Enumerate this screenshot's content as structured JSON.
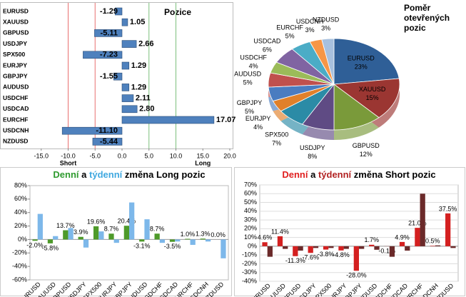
{
  "chart_data": [
    {
      "type": "hbar",
      "title": "Pozice",
      "categories": [
        "EURUSD",
        "XAUUSD",
        "GBPUSD",
        "USDJPY",
        "SPX500",
        "EURJPY",
        "GBPJPY",
        "AUDUSD",
        "USDCHF",
        "USDCAD",
        "EURCHF",
        "USDCNH",
        "NZDUSD"
      ],
      "values": [
        -1.29,
        1.05,
        -5.11,
        2.66,
        -7.23,
        1.29,
        -1.55,
        1.29,
        2.11,
        2.8,
        17.07,
        -11.1,
        -5.44
      ],
      "value_labels": [
        "-1.29",
        "1.05",
        "-5.11",
        "2.66",
        "-7.23",
        "1.29",
        "-1.55",
        "1.29",
        "2.11",
        "2.80",
        "17.07",
        "-11.10",
        "-5.44"
      ],
      "color": "#4f81bd",
      "xlim": [
        -15,
        20
      ],
      "xticks": [
        {
          "value": -15,
          "label": "-15.0"
        },
        {
          "value": -10,
          "label": "-10.0"
        },
        {
          "value": -5,
          "label": "-5.0"
        },
        {
          "value": 0,
          "label": "0.0"
        },
        {
          "value": 5,
          "label": "5.0"
        },
        {
          "value": 10,
          "label": "10.0"
        },
        {
          "value": 15,
          "label": "15.0"
        },
        {
          "value": 20,
          "label": "20.0"
        }
      ],
      "reference_lines": [
        {
          "value": -10,
          "color": "#e87070"
        },
        {
          "value": -5,
          "color": "#e87070"
        },
        {
          "value": 5,
          "color": "#7cc07c"
        },
        {
          "value": 10,
          "color": "#7cc07c"
        }
      ],
      "annotations": [
        {
          "text": "Short",
          "x": -10
        },
        {
          "text": "Long",
          "x": 15
        }
      ]
    },
    {
      "type": "pie",
      "title": "Poměr otevřených pozic",
      "categories": [
        "EURUSD",
        "XAUUSD",
        "GBPUSD",
        "USDJPY",
        "SPX500",
        "EURJPY",
        "GBPJPY",
        "AUDUSD",
        "USDCHF",
        "USDCAD",
        "EURCHF",
        "USDCNH",
        "NZDUSD"
      ],
      "values": [
        23,
        15,
        12,
        8,
        7,
        4,
        5,
        5,
        4,
        6,
        5,
        3,
        3
      ],
      "value_labels": [
        "23%",
        "15%",
        "12%",
        "8%",
        "7%",
        "4%",
        "5%",
        "5%",
        "4%",
        "6%",
        "5%",
        "3%",
        "3%"
      ],
      "colors": [
        "#2f5f97",
        "#9b3632",
        "#7a9a3a",
        "#5f4b84",
        "#2b8ba6",
        "#e0802a",
        "#4a7cc0",
        "#c0504d",
        "#9bbb59",
        "#8064a2",
        "#4bacc6",
        "#f79646",
        "#a7c0de"
      ]
    },
    {
      "type": "column",
      "title": [
        {
          "text": "Denní",
          "color": "#2e9a2e"
        },
        {
          "text": "a",
          "color": "#000000"
        },
        {
          "text": "týdenní",
          "color": "#3fa8e0"
        },
        {
          "text": "změna Long pozic",
          "color": "#000000"
        }
      ],
      "categories": [
        "EURUSD",
        "XAUUSD",
        "GBPUSD",
        "USDJPY",
        "SPX500",
        "EURJPY",
        "GBPJPY",
        "AUDUSD",
        "USDCHF",
        "USDCAD",
        "EURCHF",
        "USDCNH",
        "NZDUSD"
      ],
      "series": [
        {
          "color": "#4e9a2a",
          "values": [
            -2.0,
            -5.8,
            13.7,
            3.9,
            19.6,
            8.7,
            20.4,
            -3.1,
            8.7,
            -3.5,
            1.0,
            1.3,
            0.0
          ],
          "value_labels": [
            "-2.0%",
            "-5.8%",
            "13.7%",
            "3.9%",
            "19.6%",
            "8.7%",
            "20.4%",
            "-3.1%",
            "8.7%",
            "-3.5%",
            "1.0%",
            "1.3%",
            "0.0%"
          ]
        },
        {
          "color": "#7db8ea",
          "values": [
            38,
            5,
            17,
            -12,
            12,
            -5,
            55,
            30,
            -5,
            -3,
            -8,
            -3,
            -28
          ]
        }
      ],
      "ylim": [
        -60,
        80
      ],
      "yticks": [
        {
          "value": -60,
          "label": "-60%"
        },
        {
          "value": -40,
          "label": "-40%"
        },
        {
          "value": -20,
          "label": "-20%"
        },
        {
          "value": 0,
          "label": "0%"
        },
        {
          "value": 20,
          "label": "20%"
        },
        {
          "value": 40,
          "label": "40%"
        },
        {
          "value": 60,
          "label": "60%"
        },
        {
          "value": 80,
          "label": "80%"
        }
      ],
      "grid": false
    },
    {
      "type": "column",
      "title": [
        {
          "text": "Denní",
          "color": "#e02020"
        },
        {
          "text": "a",
          "color": "#000000"
        },
        {
          "text": "týdenní",
          "color": "#b22222"
        },
        {
          "text": "změna Short pozic",
          "color": "#000000"
        }
      ],
      "categories": [
        "EURUSD",
        "XAUUSD",
        "GBPUSD",
        "USDJPY",
        "SPX500",
        "EURJPY",
        "GBPJPY",
        "AUDUSD",
        "USDCHF",
        "USDCAD",
        "EURCHF",
        "USDCNH",
        "NZDUSD"
      ],
      "series": [
        {
          "color": "#d42020",
          "values": [
            4.6,
            11.4,
            -11.3,
            -7.6,
            -3.8,
            -4.8,
            -28.0,
            1.7,
            -0.1,
            4.9,
            21.0,
            0.5,
            37.5
          ],
          "value_labels": [
            "4.6%",
            "11.4%",
            "-11.3%",
            "-7.6%",
            "-3.8%",
            "-4.8%",
            "-28.0%",
            "1.7%",
            "-0.1%",
            "4.9%",
            "21.0%",
            "0.5%",
            "37.5%"
          ]
        },
        {
          "color": "#6b2a2a",
          "values": [
            -12,
            -3,
            -5,
            -2,
            -2,
            -3,
            -3,
            -4,
            -12,
            -5,
            60,
            1,
            -2
          ]
        }
      ],
      "ylim": [
        -40,
        70
      ],
      "yticks": [
        {
          "value": -40,
          "label": "-40%"
        },
        {
          "value": -30,
          "label": "-30%"
        },
        {
          "value": -20,
          "label": "-20%"
        },
        {
          "value": -10,
          "label": "-10%"
        },
        {
          "value": 0,
          "label": "0%"
        },
        {
          "value": 10,
          "label": "10%"
        },
        {
          "value": 20,
          "label": "20%"
        },
        {
          "value": 30,
          "label": "30%"
        },
        {
          "value": 40,
          "label": "40%"
        },
        {
          "value": 50,
          "label": "50%"
        },
        {
          "value": 60,
          "label": "60%"
        },
        {
          "value": 70,
          "label": "70%"
        }
      ],
      "grid": true
    }
  ]
}
